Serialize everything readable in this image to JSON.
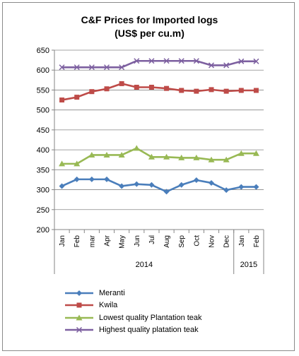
{
  "chart_data": {
    "type": "line",
    "title": "C&F Prices for Imported logs",
    "subtitle": "(US$ per cu.m)",
    "xlabel": "",
    "ylabel": "",
    "categories": [
      "Jan",
      "Feb",
      "mar",
      "Apr",
      "May",
      "Jun",
      "Jul",
      "Aug",
      "Sep",
      "Oct",
      "Nov",
      "Dec",
      "Jan",
      "Feb"
    ],
    "year_groups": [
      {
        "label": "2014",
        "count": 12
      },
      {
        "label": "2015",
        "count": 2
      }
    ],
    "ylim": [
      200,
      650
    ],
    "yticks": [
      200,
      250,
      300,
      350,
      400,
      450,
      500,
      550,
      600,
      650
    ],
    "grid": true,
    "legend_position": "bottom",
    "series": [
      {
        "name": "Meranti",
        "color": "#4a7ebb",
        "marker": "diamond",
        "values": [
          309,
          326,
          326,
          326,
          309,
          314,
          312,
          295,
          312,
          324,
          317,
          299,
          307,
          307
        ]
      },
      {
        "name": "Kwila",
        "color": "#be4b48",
        "marker": "square",
        "values": [
          525,
          532,
          546,
          553,
          566,
          557,
          557,
          554,
          549,
          547,
          551,
          547,
          549,
          549
        ]
      },
      {
        "name": "Lowest quality Plantation teak",
        "color": "#98b954",
        "marker": "triangle",
        "values": [
          365,
          365,
          387,
          387,
          387,
          404,
          382,
          382,
          380,
          380,
          375,
          375,
          391,
          391
        ]
      },
      {
        "name": "Highest quality platation teak",
        "color": "#7d60a0",
        "marker": "x",
        "values": [
          607,
          607,
          607,
          607,
          607,
          623,
          623,
          623,
          623,
          623,
          612,
          612,
          622,
          622
        ]
      }
    ]
  }
}
